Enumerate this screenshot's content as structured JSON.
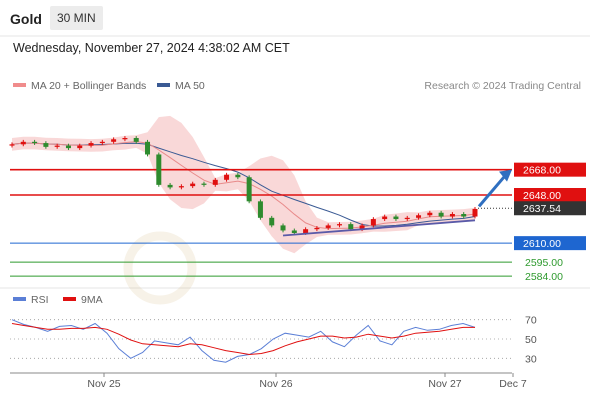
{
  "header": {
    "instrument": "Gold",
    "timeframe": "30 MIN",
    "datetime": "Wednesday, November 27, 2024 4:38:02 AM CET"
  },
  "legend": {
    "items": [
      {
        "label": "MA 20 + Bollinger Bands",
        "color": "#f08c8c"
      },
      {
        "label": "MA 50",
        "color": "#3a5a94"
      }
    ],
    "credit": "Research © 2024 Trading Central"
  },
  "rsi_legend": {
    "items": [
      {
        "label": "RSI",
        "color": "#5b7fd6"
      },
      {
        "label": "9MA",
        "color": "#e01010"
      }
    ]
  },
  "chart_data": [
    {
      "type": "line",
      "title": "Gold 30 MIN price",
      "x_tick_labels": [
        "Nov 25",
        "Nov 26",
        "Nov 27",
        "Dec 7"
      ],
      "ylim": [
        2573,
        2723
      ],
      "price_series_approx": [
        2688,
        2690,
        2689,
        2686,
        2687,
        2685,
        2687,
        2689,
        2690,
        2692,
        2693,
        2690,
        2680,
        2656,
        2654,
        2655,
        2657,
        2656,
        2660,
        2664,
        2662,
        2643,
        2630,
        2624,
        2620,
        2618,
        2621,
        2622,
        2624,
        2625,
        2621,
        2624,
        2629,
        2631,
        2629,
        2630,
        2632,
        2634,
        2631,
        2633,
        2631,
        2637
      ],
      "indicators": [
        "MA 20 + Bollinger Bands",
        "MA 50"
      ],
      "horizontal_levels": [
        {
          "value": 2668.0,
          "label": "2668.00",
          "color": "#e01010"
        },
        {
          "value": 2648.0,
          "label": "2648.00",
          "color": "#e01010"
        },
        {
          "value": 2637.54,
          "label": "2637.54",
          "color": "#333333",
          "type": "last price"
        },
        {
          "value": 2610.0,
          "label": "2610.00",
          "color": "#1e66d0"
        },
        {
          "value": 2595.0,
          "label": "2595.00",
          "color": "#2e9a2e"
        },
        {
          "value": 2584.0,
          "label": "2584.00",
          "color": "#2e9a2e"
        }
      ]
    },
    {
      "type": "line",
      "title": "RSI",
      "ylim": [
        20,
        80
      ],
      "y_ticks": [
        30,
        50,
        70
      ],
      "series": [
        {
          "name": "RSI",
          "values": [
            70,
            65,
            62,
            58,
            63,
            64,
            60,
            66,
            56,
            40,
            30,
            36,
            48,
            46,
            44,
            52,
            38,
            28,
            26,
            32,
            34,
            40,
            50,
            56,
            54,
            52,
            58,
            47,
            42,
            54,
            64,
            48,
            44,
            58,
            62,
            59,
            60,
            64,
            66,
            62
          ]
        },
        {
          "name": "9MA",
          "values": [
            66,
            64,
            62,
            60,
            60,
            61,
            61,
            62,
            60,
            55,
            49,
            45,
            44,
            43,
            42,
            45,
            44,
            41,
            38,
            36,
            34,
            35,
            38,
            43,
            47,
            50,
            53,
            53,
            51,
            52,
            55,
            53,
            51,
            53,
            56,
            57,
            58,
            60,
            62,
            62
          ]
        }
      ]
    }
  ]
}
